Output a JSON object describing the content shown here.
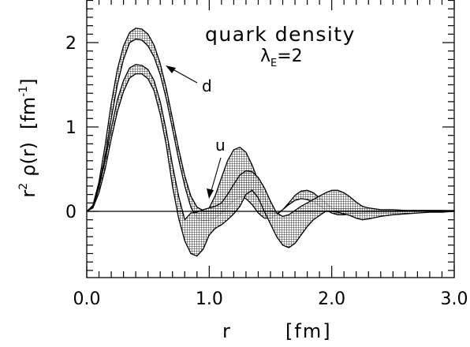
{
  "chart_data": {
    "type": "line",
    "title": "quark density",
    "subtitle": "λ_E=2",
    "subtitle_parts": {
      "symbol": "λ",
      "sub": "E",
      "rest": "=2"
    },
    "xlabel": "r [fm]",
    "xlabel_parts": {
      "var": "r",
      "unit": "[fm]"
    },
    "ylabel": "r² ρ(r) [fm⁻¹]",
    "ylabel_parts": {
      "r": "r",
      "pow": "2",
      "rho": "ρ(r)",
      "unit": "[fm",
      "unitsup": "-1",
      "close": "]"
    },
    "xlim": [
      0.0,
      3.0
    ],
    "ylim": [
      -0.8,
      2.5
    ],
    "x_ticks": [
      "0.0",
      "1.0",
      "2.0",
      "3.0"
    ],
    "y_ticks": [
      "0",
      "1",
      "2"
    ],
    "grid": false,
    "legend": "none",
    "annotations": [
      {
        "text": "d",
        "series": "d"
      },
      {
        "text": "u",
        "series": "u"
      }
    ],
    "series": [
      {
        "name": "d",
        "x": [
          0.0,
          0.05,
          0.1,
          0.15,
          0.2,
          0.25,
          0.3,
          0.35,
          0.4,
          0.45,
          0.5,
          0.55,
          0.6,
          0.65,
          0.7,
          0.75,
          0.8,
          0.85,
          0.9,
          0.95,
          1.0,
          1.05,
          1.1,
          1.15,
          1.2,
          1.25,
          1.3,
          1.35,
          1.4,
          1.45,
          1.5,
          1.55,
          1.6,
          1.65,
          1.7,
          1.75,
          1.8,
          1.85,
          1.9,
          1.95,
          2.0,
          2.05,
          2.1,
          2.15,
          2.2,
          2.25,
          2.3,
          2.4,
          2.5,
          2.6,
          2.7,
          2.8,
          2.9,
          3.0
        ],
        "upper": [
          0.0,
          0.07,
          0.35,
          0.78,
          1.28,
          1.68,
          1.96,
          2.12,
          2.17,
          2.16,
          2.1,
          1.97,
          1.75,
          1.45,
          1.1,
          0.74,
          0.42,
          0.18,
          0.05,
          0.01,
          0.04,
          0.19,
          0.4,
          0.6,
          0.73,
          0.76,
          0.7,
          0.55,
          0.36,
          0.17,
          0.02,
          -0.03,
          0.02,
          0.1,
          0.19,
          0.24,
          0.25,
          0.22,
          0.16,
          0.1,
          0.04,
          0.03,
          0.03,
          0.03,
          0.03,
          0.03,
          0.02,
          0.01,
          0.01,
          0.01,
          0.01,
          0.01,
          0.01,
          0.01
        ],
        "lower": [
          0.0,
          0.06,
          0.3,
          0.65,
          1.1,
          1.5,
          1.8,
          2.0,
          2.04,
          2.03,
          1.96,
          1.83,
          1.62,
          1.33,
          0.98,
          0.62,
          0.3,
          0.05,
          -0.08,
          -0.11,
          -0.1,
          -0.08,
          -0.02,
          0.06,
          0.13,
          0.17,
          0.15,
          0.08,
          -0.02,
          -0.08,
          -0.08,
          -0.04,
          0.02,
          0.08,
          0.13,
          0.15,
          0.14,
          0.11,
          0.07,
          0.02,
          -0.02,
          -0.04,
          -0.04,
          -0.03,
          -0.02,
          -0.02,
          -0.01,
          -0.01,
          -0.01,
          0.0,
          0.0,
          0.0,
          0.0,
          0.0
        ]
      },
      {
        "name": "u",
        "x": [
          0.0,
          0.05,
          0.1,
          0.15,
          0.2,
          0.25,
          0.3,
          0.35,
          0.4,
          0.45,
          0.5,
          0.55,
          0.6,
          0.65,
          0.7,
          0.75,
          0.8,
          0.85,
          0.9,
          0.95,
          1.0,
          1.05,
          1.1,
          1.15,
          1.2,
          1.25,
          1.3,
          1.35,
          1.4,
          1.45,
          1.5,
          1.55,
          1.6,
          1.65,
          1.7,
          1.75,
          1.8,
          1.85,
          1.9,
          1.95,
          2.0,
          2.05,
          2.1,
          2.15,
          2.2,
          2.25,
          2.3,
          2.4,
          2.5,
          2.6,
          2.7,
          2.8,
          2.9,
          3.0
        ],
        "upper": [
          0.0,
          0.05,
          0.28,
          0.6,
          0.98,
          1.32,
          1.55,
          1.7,
          1.74,
          1.73,
          1.68,
          1.55,
          1.3,
          0.95,
          0.55,
          0.18,
          -0.1,
          -0.02,
          -0.01,
          0.02,
          0.04,
          0.06,
          0.1,
          0.2,
          0.32,
          0.43,
          0.48,
          0.47,
          0.4,
          0.28,
          0.12,
          -0.02,
          -0.06,
          -0.04,
          0.01,
          0.06,
          0.1,
          0.14,
          0.18,
          0.22,
          0.25,
          0.25,
          0.22,
          0.17,
          0.11,
          0.06,
          0.04,
          0.02,
          0.02,
          0.01,
          0.01,
          0.01,
          0.01,
          0.0
        ],
        "lower": [
          0.0,
          0.04,
          0.22,
          0.5,
          0.86,
          1.18,
          1.42,
          1.58,
          1.63,
          1.63,
          1.57,
          1.43,
          1.15,
          0.78,
          0.3,
          -0.08,
          -0.35,
          -0.5,
          -0.53,
          -0.45,
          -0.28,
          -0.2,
          -0.16,
          -0.1,
          -0.03,
          0.06,
          0.2,
          0.25,
          0.16,
          0.0,
          -0.15,
          -0.3,
          -0.4,
          -0.43,
          -0.38,
          -0.28,
          -0.18,
          -0.1,
          -0.05,
          0.0,
          0.0,
          -0.01,
          -0.03,
          -0.05,
          -0.08,
          -0.1,
          -0.09,
          -0.06,
          -0.04,
          -0.03,
          -0.02,
          -0.01,
          -0.01,
          0.0
        ]
      }
    ]
  }
}
